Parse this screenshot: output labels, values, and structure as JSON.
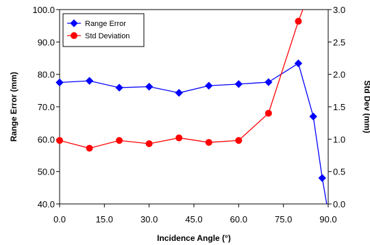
{
  "chart_data": {
    "type": "line",
    "xlabel": "Incidence Angle (°)",
    "ylabel": "Range Error (mm)",
    "y2label": "Std Dev (mm)",
    "xlim": [
      0,
      90
    ],
    "ylim": [
      40,
      100
    ],
    "y2lim": [
      0,
      3
    ],
    "xticks": [
      "0.0",
      "15.0",
      "30.0",
      "45.0",
      "60.0",
      "75.0",
      "90.0"
    ],
    "yticks": [
      "40.0",
      "50.0",
      "60.0",
      "70.0",
      "80.0",
      "90.0",
      "100.0"
    ],
    "y2ticks": [
      "0.0",
      "0.5",
      "1.0",
      "1.5",
      "2.0",
      "2.5",
      "3.0"
    ],
    "grid": false,
    "legend_position": "top-left",
    "series": [
      {
        "name": "Range Error",
        "axis": "left",
        "color": "#0000ff",
        "marker": "diamond",
        "x": [
          0,
          10,
          20,
          30,
          40,
          50,
          60,
          70,
          80,
          85,
          88,
          89.5
        ],
        "y": [
          77.5,
          78.0,
          75.9,
          76.2,
          74.3,
          76.5,
          77.0,
          77.6,
          83.4,
          67.0,
          48.0,
          40.0
        ],
        "markers_at": [
          0,
          10,
          20,
          30,
          40,
          50,
          60,
          70,
          80,
          85,
          88
        ]
      },
      {
        "name": "Std Deviation",
        "axis": "right",
        "color": "#ff0000",
        "marker": "circle",
        "x": [
          0,
          10,
          20,
          30,
          40,
          50,
          60,
          70,
          80,
          81.5
        ],
        "y": [
          0.98,
          0.86,
          0.98,
          0.93,
          1.02,
          0.95,
          0.98,
          1.4,
          2.82,
          3.0
        ],
        "markers_at": [
          0,
          10,
          20,
          30,
          40,
          50,
          60,
          70,
          80
        ]
      }
    ]
  }
}
